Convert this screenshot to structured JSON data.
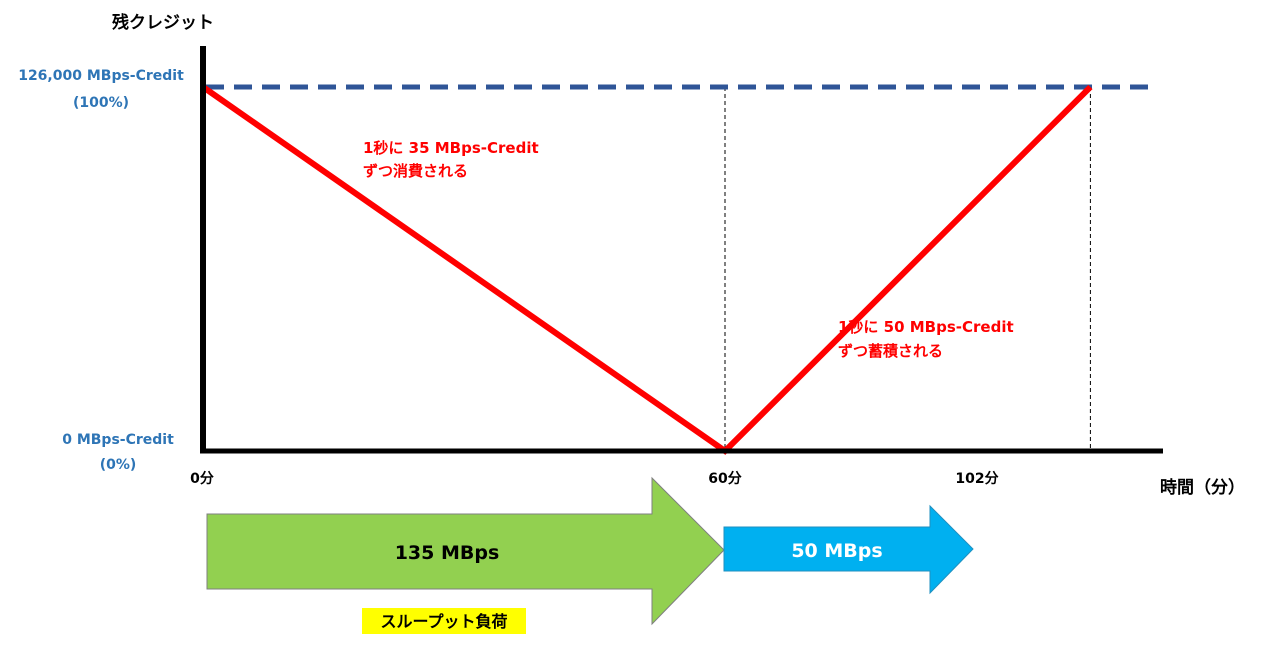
{
  "y_axis_title": "残クレジット",
  "x_axis_title": "時間（分）",
  "y_ticks": {
    "top_line1": "126,000 MBps-Credit",
    "top_line2": "(100%)",
    "bottom_line1": "0 MBps-Credit",
    "bottom_line2": "(0%)"
  },
  "x_ticks": [
    "0分",
    "60分",
    "102分"
  ],
  "annotations": {
    "consume_line1": "1秒に 35 MBps-Credit",
    "consume_line2": "ずつ消費される",
    "accumulate_line1": "1秒に 50 MBps-Credit",
    "accumulate_line2": "ずつ蓄積される"
  },
  "load_arrows": {
    "high_label": "135 MBps",
    "low_label": "50 MBps",
    "caption": "スループット負荷"
  },
  "colors": {
    "credit_line": "#FF0000",
    "max_dashed": "#2F5597",
    "y_tick_text": "#2E75B6",
    "high_arrow": "#92D050",
    "low_arrow": "#00B0F0",
    "caption_highlight": "#FFFF00"
  },
  "chart_data": {
    "type": "line",
    "x_unit": "分",
    "y_unit": "MBps-Credit",
    "series": [
      {
        "values": [
          [
            0,
            126000
          ],
          [
            60,
            0
          ],
          [
            102,
            126000
          ]
        ]
      }
    ],
    "reference_lines": [
      {
        "axis": "y",
        "value": 126000,
        "style": "dashed"
      },
      {
        "axis": "x",
        "value": 60,
        "style": "dashed"
      },
      {
        "axis": "x",
        "value": 102,
        "style": "dashed"
      }
    ],
    "xlim": [
      0,
      110
    ],
    "ylim": [
      0,
      126000
    ]
  }
}
